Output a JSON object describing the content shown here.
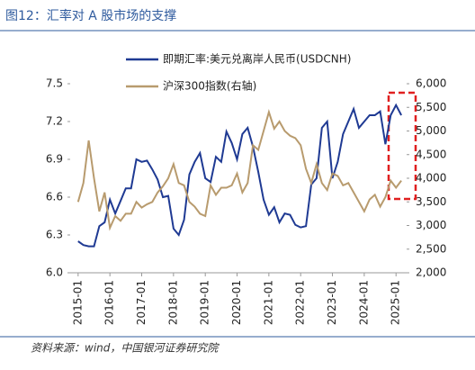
{
  "chart_data": {
    "type": "line",
    "title": "图12：汇率对 A 股市场的支撑",
    "source": "资料来源：wind，中国银河证券研究院",
    "x": [
      "2015-01",
      "2015-03",
      "2015-05",
      "2015-07",
      "2015-09",
      "2015-11",
      "2016-01",
      "2016-03",
      "2016-05",
      "2016-07",
      "2016-09",
      "2016-11",
      "2017-01",
      "2017-03",
      "2017-05",
      "2017-07",
      "2017-09",
      "2017-11",
      "2018-01",
      "2018-03",
      "2018-05",
      "2018-07",
      "2018-09",
      "2018-11",
      "2019-01",
      "2019-03",
      "2019-05",
      "2019-07",
      "2019-09",
      "2019-11",
      "2020-01",
      "2020-03",
      "2020-05",
      "2020-07",
      "2020-09",
      "2020-11",
      "2021-01",
      "2021-03",
      "2021-05",
      "2021-07",
      "2021-09",
      "2021-11",
      "2022-01",
      "2022-03",
      "2022-05",
      "2022-07",
      "2022-09",
      "2022-11",
      "2023-01",
      "2023-03",
      "2023-05",
      "2023-07",
      "2023-09",
      "2023-11",
      "2024-01",
      "2024-03",
      "2024-05",
      "2024-07",
      "2024-09",
      "2024-11",
      "2025-01",
      "2025-03"
    ],
    "xlim": [
      "2014-10",
      "2025-05"
    ],
    "xticks": [
      "2015-01",
      "2016-01",
      "2017-01",
      "2018-01",
      "2019-01",
      "2020-01",
      "2021-01",
      "2022-01",
      "2023-01",
      "2024-01",
      "2025-01"
    ],
    "series": [
      {
        "name": "即期汇率:美元兑离岸人民币(USDCNH)",
        "color": "#1f3a93",
        "values": [
          6.25,
          6.22,
          6.21,
          6.21,
          6.37,
          6.4,
          6.58,
          6.47,
          6.57,
          6.67,
          6.67,
          6.9,
          6.88,
          6.89,
          6.82,
          6.74,
          6.6,
          6.61,
          6.35,
          6.3,
          6.42,
          6.78,
          6.88,
          6.95,
          6.75,
          6.72,
          6.92,
          6.88,
          7.12,
          7.03,
          6.9,
          7.1,
          7.15,
          7.0,
          6.8,
          6.58,
          6.46,
          6.52,
          6.4,
          6.47,
          6.46,
          6.38,
          6.36,
          6.37,
          6.7,
          6.75,
          7.15,
          7.2,
          6.75,
          6.88,
          7.1,
          7.2,
          7.3,
          7.15,
          7.2,
          7.25,
          7.25,
          7.28,
          7.02,
          7.25,
          7.33,
          7.25
        ]
      },
      {
        "name": "沪深300指数(右轴)",
        "color": "#b89b6e",
        "axis": "y2",
        "values": [
          3500,
          3900,
          4800,
          4000,
          3300,
          3700,
          2950,
          3200,
          3100,
          3250,
          3250,
          3500,
          3380,
          3450,
          3500,
          3700,
          3830,
          4000,
          4300,
          3900,
          3850,
          3500,
          3400,
          3250,
          3200,
          3850,
          3650,
          3800,
          3800,
          3850,
          4100,
          3700,
          3900,
          4700,
          4600,
          5000,
          5400,
          5050,
          5200,
          5000,
          4900,
          4850,
          4700,
          4200,
          3900,
          4300,
          3900,
          3750,
          4100,
          4050,
          3850,
          3900,
          3700,
          3500,
          3300,
          3550,
          3650,
          3400,
          3600,
          3950,
          3800,
          3950
        ]
      }
    ],
    "ylim": [
      6.0,
      7.5
    ],
    "yticks": [
      {
        "value": 6,
        "label": "6.0"
      },
      6.3,
      6.6,
      6.9,
      7.2,
      7.5
    ],
    "y2lim": [
      2000,
      6000
    ],
    "y2ticks": [
      {
        "value": 2000,
        "label": "2,000"
      },
      {
        "value": 2500,
        "label": "2,500"
      },
      {
        "value": 3000,
        "label": "3,000"
      },
      {
        "value": 3500,
        "label": "3,500"
      },
      {
        "value": 4000,
        "label": "4,000"
      },
      {
        "value": 4500,
        "label": "4,500"
      },
      {
        "value": 5000,
        "label": "5,000"
      },
      {
        "value": 5500,
        "label": "5,500"
      },
      {
        "value": 6000,
        "label": "6,000"
      }
    ],
    "grid": false
  }
}
